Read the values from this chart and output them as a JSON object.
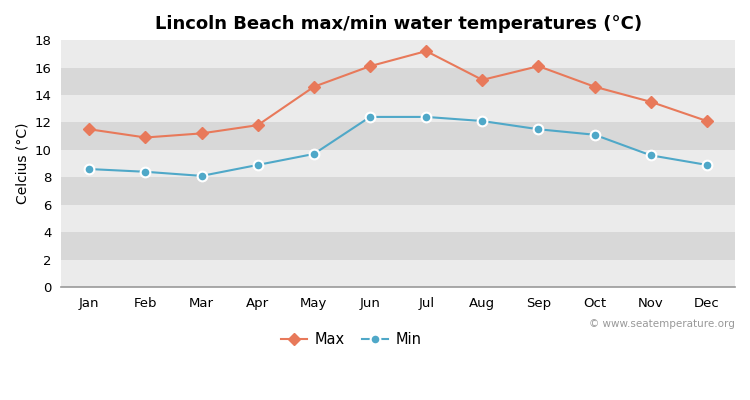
{
  "title": "Lincoln Beach max/min water temperatures (°C)",
  "ylabel": "Celcius (°C)",
  "months": [
    "Jan",
    "Feb",
    "Mar",
    "Apr",
    "May",
    "Jun",
    "Jul",
    "Aug",
    "Sep",
    "Oct",
    "Nov",
    "Dec"
  ],
  "max_temps": [
    11.5,
    10.9,
    11.2,
    11.8,
    14.6,
    16.1,
    17.2,
    15.1,
    16.1,
    14.6,
    13.5,
    12.1
  ],
  "min_temps": [
    8.6,
    8.4,
    8.1,
    8.9,
    9.7,
    12.4,
    12.4,
    12.1,
    11.5,
    11.1,
    9.6,
    8.9
  ],
  "max_color": "#e8795a",
  "min_color": "#4fa8c8",
  "bg_color_light": "#ebebeb",
  "bg_color_dark": "#d8d8d8",
  "ylim": [
    0,
    18
  ],
  "yticks": [
    0,
    2,
    4,
    6,
    8,
    10,
    12,
    14,
    16,
    18
  ],
  "watermark": "© www.seatemperature.org",
  "legend_labels": [
    "Max",
    "Min"
  ],
  "title_fontsize": 13,
  "label_fontsize": 10,
  "tick_fontsize": 9.5,
  "watermark_fontsize": 7.5
}
